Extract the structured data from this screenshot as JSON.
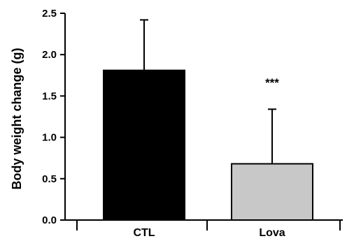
{
  "chart_data": {
    "type": "bar",
    "categories": [
      "CTL",
      "Lova"
    ],
    "values": [
      1.81,
      0.68
    ],
    "error_upper": [
      2.42,
      1.34
    ],
    "bar_colors": [
      "#000000",
      "#c8c8c8"
    ],
    "ylabel": "Body weight change (g)",
    "xlabel": "",
    "title": "",
    "ylim": [
      0,
      2.5
    ],
    "yticks": [
      "0.0",
      "0.5",
      "1.0",
      "1.5",
      "2.0",
      "2.5"
    ],
    "annotations": [
      {
        "category": "Lova",
        "text": "***"
      }
    ],
    "grid": false,
    "legend": "none"
  }
}
